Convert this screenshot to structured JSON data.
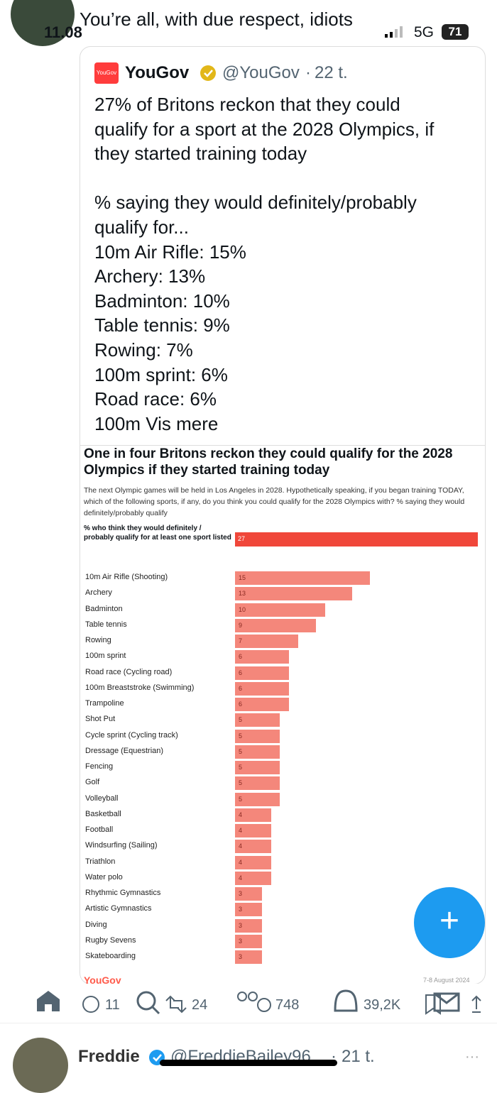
{
  "status_bar": {
    "time": "11.08",
    "network": "5G",
    "battery": "71"
  },
  "tweet": {
    "text": "You’re all, with due respect, idiots",
    "quote": {
      "avatar_text": "YouGov",
      "name": "YouGov",
      "handle": "@YouGov",
      "separator": "·",
      "time": "22 t.",
      "paragraphs": [
        [
          "27% of Britons reckon that they could",
          "qualify for a sport at the 2028 Olympics, if",
          "they started training today"
        ],
        [
          "% saying they would definitely/probably",
          "qualify for...",
          "10m Air Rifle: 15%",
          "Archery: 13%",
          "Badminton: 10%",
          "Table tennis: 9%",
          "Rowing: 7%",
          "100m sprint: 6%",
          "Road race: 6%",
          "100m Vis mere"
        ]
      ]
    },
    "actions": {
      "replies": "11",
      "reposts": "24",
      "likes": "748",
      "views": "39,2K"
    }
  },
  "chart_data": {
    "type": "bar",
    "orientation": "horizontal",
    "title": "One in four Britons reckon they could qualify for the 2028 Olympics if they started training today",
    "subtitle": "The next Olympic games will be held in Los Angeles in 2028. Hypothetically speaking, if you began training TODAY, which of the following sports, if any, do you think you could qualify for the 2028 Olympics with? % saying they would definitely/probably qualify",
    "highlight": {
      "label": "% who think they would definitely / probably qualify for at least one sport listed",
      "value": 27,
      "color": "#f0473a"
    },
    "categories": [
      "10m Air Rifle (Shooting)",
      "Archery",
      "Badminton",
      "Table tennis",
      "Rowing",
      "100m sprint",
      "Road race (Cycling road)",
      "100m Breaststroke (Swimming)",
      "Trampoline",
      "Shot Put",
      "Cycle sprint (Cycling track)",
      "Dressage (Equestrian)",
      "Fencing",
      "Golf",
      "Volleyball",
      "Basketball",
      "Football",
      "Windsurfing (Sailing)",
      "Triathlon",
      "Water polo",
      "Rhythmic Gymnastics",
      "Artistic Gymnastics",
      "Diving",
      "Rugby Sevens",
      "Skateboarding"
    ],
    "values": [
      15,
      13,
      10,
      9,
      7,
      6,
      6,
      6,
      6,
      5,
      5,
      5,
      5,
      5,
      5,
      4,
      4,
      4,
      4,
      4,
      3,
      3,
      3,
      3,
      3
    ],
    "color": "#f4877b",
    "source": "YouGov",
    "date": "7-8 August 2024"
  },
  "next_tweet": {
    "name": "Freddie",
    "handle": "@FreddieBailey96",
    "separator": "·",
    "time": "21 t."
  }
}
